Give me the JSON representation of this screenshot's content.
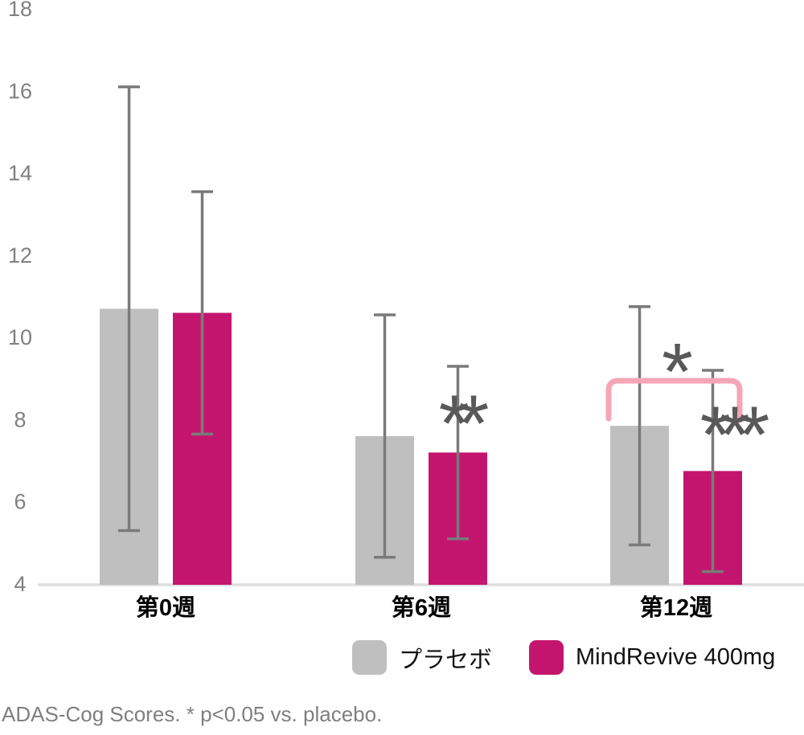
{
  "chart_data": {
    "type": "bar",
    "title": "",
    "categories": [
      "第0週",
      "第6週",
      "第12週"
    ],
    "category_keys": [
      "week0",
      "week6",
      "week12"
    ],
    "series": [
      {
        "name": "プラセボ",
        "key": "placebo",
        "color": "#BFBFBF",
        "values": [
          10.7,
          7.6,
          7.85
        ],
        "errors": [
          5.4,
          2.95,
          2.9
        ]
      },
      {
        "name": "MindRevive 400mg",
        "key": "mindrevive-400mg",
        "color": "#C4156E",
        "values": [
          10.6,
          7.2,
          6.75
        ],
        "errors": [
          2.95,
          2.1,
          2.45
        ]
      }
    ],
    "y_axis": {
      "min": 4,
      "max": 18,
      "step": 2,
      "tick_labels": [
        "18",
        "16",
        "14",
        "12",
        "10",
        "8",
        "6",
        "4"
      ]
    },
    "x_axis": {
      "gridlines": false,
      "tick_marks": false
    },
    "annotations": [
      {
        "text": "**",
        "category_index": 1,
        "series_index": 1,
        "dx": 0
      },
      {
        "text": "***",
        "category_index": 2,
        "series_index": 1,
        "dx": 20
      },
      {
        "text": "*",
        "bracket": true,
        "dx": 4
      }
    ],
    "significance_bracket": {
      "category_index": 2,
      "from_series": 0,
      "to_series": 1,
      "color": "#F5A6B6"
    },
    "colors": {
      "error_bar": "#7A7A7A",
      "annotation": "#595959",
      "axis_line": "#DEDEDE",
      "tick_label": "#808080",
      "category_label": "#000000"
    },
    "legend_position": "bottom"
  },
  "legend": {
    "items": [
      {
        "label": "プラセボ"
      },
      {
        "label": "MindRevive 400mg"
      }
    ]
  },
  "footnote": {
    "text": "ADAS-Cog Scores. * p<0.05 vs. placebo."
  }
}
